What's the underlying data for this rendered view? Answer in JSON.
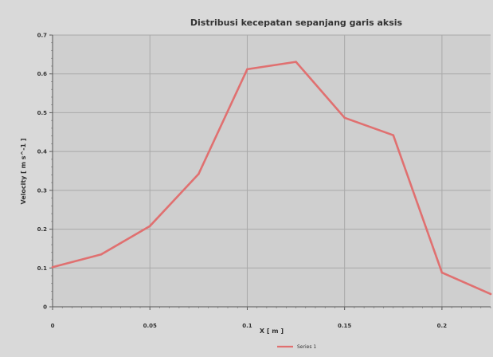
{
  "chart_data": {
    "type": "line",
    "title": "Distribusi kecepatan sepanjang garis aksis",
    "xlabel": "X [ m ]",
    "ylabel": "Velocity [ m s^-1 ]",
    "xlim": [
      0,
      0.225
    ],
    "ylim": [
      0,
      0.7
    ],
    "xticks": [
      {
        "value": 0,
        "label": "0"
      },
      {
        "value": 0.05,
        "label": "0.05"
      },
      {
        "value": 0.1,
        "label": "0.1"
      },
      {
        "value": 0.15,
        "label": "0.15"
      },
      {
        "value": 0.2,
        "label": "0.2"
      }
    ],
    "yticks": [
      {
        "value": 0,
        "label": "0"
      },
      {
        "value": 0.1,
        "label": "0.1"
      },
      {
        "value": 0.2,
        "label": "0.2"
      },
      {
        "value": 0.3,
        "label": "0.3"
      },
      {
        "value": 0.4,
        "label": "0.4"
      },
      {
        "value": 0.5,
        "label": "0.5"
      },
      {
        "value": 0.6,
        "label": "0.6"
      },
      {
        "value": 0.7,
        "label": "0.7"
      }
    ],
    "grid": true,
    "legend_position": "bottom-center",
    "series": [
      {
        "name": "Series 1",
        "color": "#e07070",
        "x": [
          0,
          0.025,
          0.05,
          0.075,
          0.1,
          0.125,
          0.15,
          0.175,
          0.2,
          0.225
        ],
        "y": [
          0.102,
          0.135,
          0.208,
          0.342,
          0.612,
          0.631,
          0.487,
          0.442,
          0.088,
          0.033
        ]
      }
    ]
  }
}
